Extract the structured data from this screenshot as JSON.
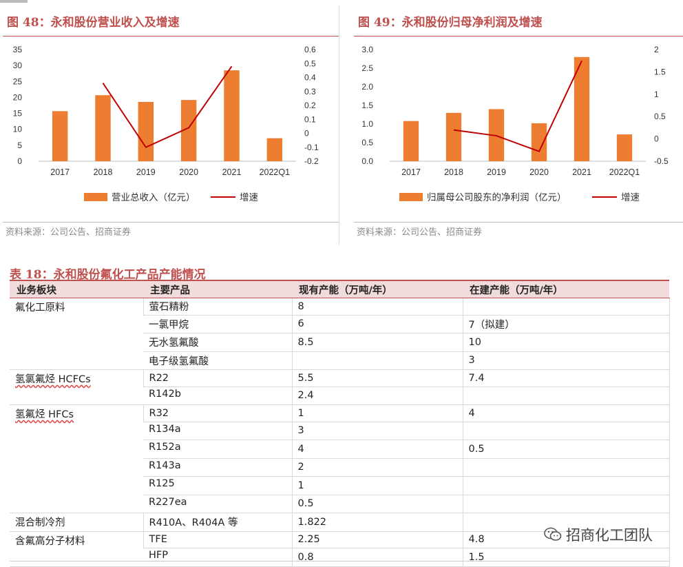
{
  "figure48": {
    "title": "图 48：永和股份营业收入及增速",
    "source": "资料来源：公司公告、招商证券",
    "chart_data": {
      "type": "bar",
      "categories": [
        "2017",
        "2018",
        "2019",
        "2020",
        "2021",
        "2022Q1"
      ],
      "series": [
        {
          "name": "营业总收入（亿元）",
          "type": "bar",
          "axis": "left",
          "values": [
            15.7,
            20.7,
            18.6,
            19.2,
            28.5,
            7.2
          ]
        },
        {
          "name": "增速",
          "type": "line",
          "axis": "right",
          "values": [
            null,
            0.36,
            -0.1,
            0.04,
            0.48,
            null
          ]
        }
      ],
      "ylim_left": [
        0,
        35
      ],
      "yticks_left": [
        "0",
        "5",
        "10",
        "15",
        "20",
        "25",
        "30",
        "35"
      ],
      "ylim_right": [
        -0.2,
        0.6
      ],
      "yticks_right": [
        "-0.2",
        "-0.1",
        "0",
        "0.1",
        "0.2",
        "0.3",
        "0.4",
        "0.5",
        "0.6"
      ],
      "legend": "bottom",
      "colors": {
        "bar": "#ed7d31",
        "line": "#c00000"
      }
    }
  },
  "figure49": {
    "title": "图 49：永和股份归母净利润及增速",
    "source": "资料来源：公司公告、招商证券",
    "chart_data": {
      "type": "bar",
      "categories": [
        "2017",
        "2018",
        "2019",
        "2020",
        "2021",
        "2022Q1"
      ],
      "series": [
        {
          "name": "归属母公司股东的净利润（亿元）",
          "type": "bar",
          "axis": "left",
          "values": [
            1.08,
            1.3,
            1.4,
            1.02,
            2.8,
            0.72
          ]
        },
        {
          "name": "增速",
          "type": "line",
          "axis": "right",
          "values": [
            null,
            0.2,
            0.07,
            -0.28,
            1.75,
            null
          ]
        }
      ],
      "ylim_left": [
        0,
        3.0
      ],
      "yticks_left": [
        "0.0",
        "0.5",
        "1.0",
        "1.5",
        "2.0",
        "2.5",
        "3.0"
      ],
      "ylim_right": [
        -0.5,
        2
      ],
      "yticks_right": [
        "-0.5",
        "0",
        "0.5",
        "1",
        "1.5",
        "2"
      ],
      "legend": "bottom",
      "colors": {
        "bar": "#ed7d31",
        "line": "#c00000"
      }
    }
  },
  "table18": {
    "title": "表 18：永和股份氟化工产品产能情况",
    "headers": [
      "业务板块",
      "主要产品",
      "现有产能（万吨/年）",
      "在建产能（万吨/年）"
    ],
    "groups": [
      {
        "segment": "氟化工原料",
        "rows": [
          [
            "萤石精粉",
            "8",
            ""
          ],
          [
            "一氯甲烷",
            "6",
            "7（拟建）"
          ],
          [
            "无水氢氟酸",
            "8.5",
            "10"
          ],
          [
            "电子级氢氟酸",
            "",
            "3"
          ]
        ]
      },
      {
        "segment": "氢氯氟烃 HCFCs",
        "rows": [
          [
            "R22",
            "5.5",
            "7.4"
          ],
          [
            "R142b",
            "2.4",
            ""
          ]
        ]
      },
      {
        "segment": "氢氟烃 HFCs",
        "rows": [
          [
            "R32",
            "1",
            "4"
          ],
          [
            "R134a",
            "3",
            ""
          ],
          [
            "R152a",
            "4",
            "0.5"
          ],
          [
            "R143a",
            "2",
            ""
          ],
          [
            "R125",
            "1",
            ""
          ],
          [
            "R227ea",
            "0.5",
            ""
          ]
        ]
      },
      {
        "segment": "混合制冷剂",
        "rows": [
          [
            "R410A、R404A 等",
            "1.822",
            ""
          ]
        ]
      },
      {
        "segment": "含氟高分子材料",
        "rows": [
          [
            "TFE",
            "2.25",
            "4.8"
          ],
          [
            "HFP",
            "0.8",
            "1.5"
          ]
        ]
      }
    ]
  },
  "watermark": "招商化工团队"
}
